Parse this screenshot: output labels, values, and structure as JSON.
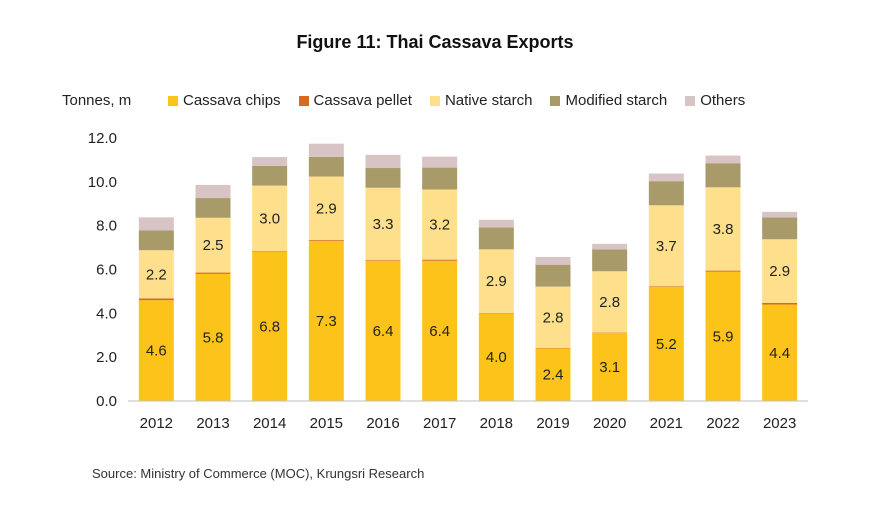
{
  "chart_data": {
    "type": "bar",
    "stacked": true,
    "title": "Figure 11: Thai Cassava Exports",
    "ylabel": "Tonnes, m",
    "xlabel": "",
    "ylim": [
      0,
      12
    ],
    "yticks": [
      "0.0",
      "2.0",
      "4.0",
      "6.0",
      "8.0",
      "10.0",
      "12.0"
    ],
    "categories": [
      "2012",
      "2013",
      "2014",
      "2015",
      "2016",
      "2017",
      "2018",
      "2019",
      "2020",
      "2021",
      "2022",
      "2023"
    ],
    "series": [
      {
        "name": "Cassava chips",
        "color": "#FCC41A",
        "values": [
          4.6,
          5.8,
          6.8,
          7.3,
          6.4,
          6.4,
          4.0,
          2.4,
          3.1,
          5.2,
          5.9,
          4.4
        ],
        "labels": [
          "4.6",
          "5.8",
          "6.8",
          "7.3",
          "6.4",
          "6.4",
          "4.0",
          "2.4",
          "3.1",
          "5.2",
          "5.9",
          "4.4"
        ]
      },
      {
        "name": "Cassava pellet",
        "color": "#D86A1F",
        "values": [
          0.08,
          0.06,
          0.03,
          0.04,
          0.03,
          0.05,
          0.02,
          0.02,
          0.02,
          0.03,
          0.05,
          0.08
        ],
        "labels": null
      },
      {
        "name": "Native starch",
        "color": "#FEE08C",
        "values": [
          2.2,
          2.5,
          3.0,
          2.9,
          3.3,
          3.2,
          2.9,
          2.8,
          2.8,
          3.7,
          3.8,
          2.9
        ],
        "labels": [
          "2.2",
          "2.5",
          "3.0",
          "2.9",
          "3.3",
          "3.2",
          "2.9",
          "2.8",
          "2.8",
          "3.7",
          "3.8",
          "2.9"
        ]
      },
      {
        "name": "Modified starch",
        "color": "#A89A69",
        "values": [
          0.9,
          0.9,
          0.9,
          0.9,
          0.9,
          1.0,
          1.0,
          1.0,
          1.0,
          1.1,
          1.1,
          1.0
        ],
        "labels": null
      },
      {
        "name": "Others",
        "color": "#D8C4C4",
        "values": [
          0.6,
          0.6,
          0.4,
          0.6,
          0.6,
          0.5,
          0.35,
          0.35,
          0.25,
          0.35,
          0.35,
          0.25
        ],
        "labels": null
      }
    ],
    "grid": false,
    "legend_position": "top"
  },
  "source": "Source: Ministry of Commerce (MOC), Krungsri Research"
}
